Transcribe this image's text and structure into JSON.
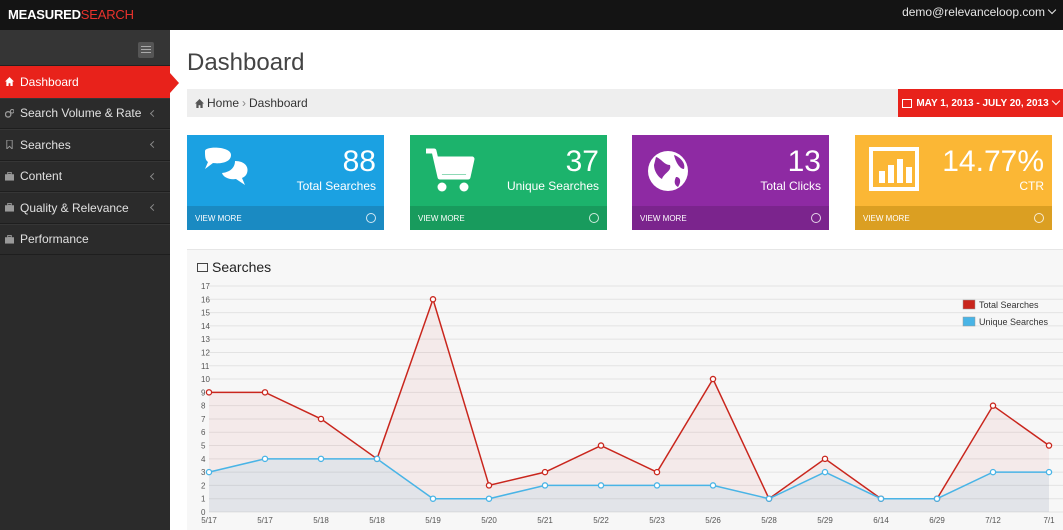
{
  "topbar": {
    "brand_part1": "MEASURED",
    "brand_part2": "SEARCH",
    "user_email": "demo@relevanceloop.com"
  },
  "sidebar": {
    "items": [
      {
        "label": "Dashboard",
        "icon": "home-icon",
        "active": true,
        "has_submenu": false
      },
      {
        "label": "Search Volume & Rate",
        "icon": "gears-icon",
        "active": false,
        "has_submenu": true
      },
      {
        "label": "Searches",
        "icon": "bookmark-icon",
        "active": false,
        "has_submenu": true
      },
      {
        "label": "Content",
        "icon": "briefcase-icon",
        "active": false,
        "has_submenu": true
      },
      {
        "label": "Quality & Relevance",
        "icon": "briefcase-icon",
        "active": false,
        "has_submenu": true
      },
      {
        "label": "Performance",
        "icon": "briefcase-icon",
        "active": false,
        "has_submenu": false
      }
    ]
  },
  "page": {
    "title": "Dashboard",
    "breadcrumb": {
      "home": "Home",
      "current": "Dashboard"
    },
    "date_range": "MAY 1, 2013 - JULY 20, 2013"
  },
  "stats": [
    {
      "value": "88",
      "label": "Total Searches",
      "footer": "VIEW MORE",
      "color": "#1ba1e2",
      "footer_color": "#1a8ac2",
      "icon": "comments-icon"
    },
    {
      "value": "37",
      "label": "Unique Searches",
      "footer": "VIEW MORE",
      "color": "#1cb36c",
      "footer_color": "#189b5d",
      "icon": "cart-icon"
    },
    {
      "value": "13",
      "label": "Total Clicks",
      "footer": "VIEW MORE",
      "color": "#8e2aa3",
      "footer_color": "#7b248d",
      "icon": "globe-icon"
    },
    {
      "value": "14.77%",
      "label": "CTR",
      "footer": "VIEW MORE",
      "color": "#fbb735",
      "footer_color": "#db9f22",
      "icon": "bar-chart-icon"
    }
  ],
  "chart_panel": {
    "title": "Searches"
  },
  "chart_data": {
    "type": "line",
    "categories": [
      "5/17",
      "5/17",
      "5/18",
      "5/18",
      "5/19",
      "5/20",
      "5/21",
      "5/22",
      "5/23",
      "5/26",
      "5/28",
      "5/29",
      "6/14",
      "6/29",
      "7/12",
      "7/1"
    ],
    "series": [
      {
        "name": "Total Searches",
        "color": "#c9261d",
        "values": [
          9,
          9,
          7,
          4,
          16,
          2,
          3,
          5,
          3,
          10,
          1,
          4,
          1,
          1,
          8,
          5
        ]
      },
      {
        "name": "Unique Searches",
        "color": "#49b4e6",
        "values": [
          3,
          4,
          4,
          4,
          1,
          1,
          2,
          2,
          2,
          2,
          1,
          3,
          1,
          1,
          3,
          3
        ]
      }
    ],
    "yticks": [
      0,
      1,
      2,
      3,
      4,
      5,
      6,
      7,
      8,
      9,
      10,
      11,
      12,
      13,
      14,
      15,
      16,
      17
    ],
    "ylim": [
      0,
      17
    ],
    "grid": true,
    "legend": "top-right"
  }
}
